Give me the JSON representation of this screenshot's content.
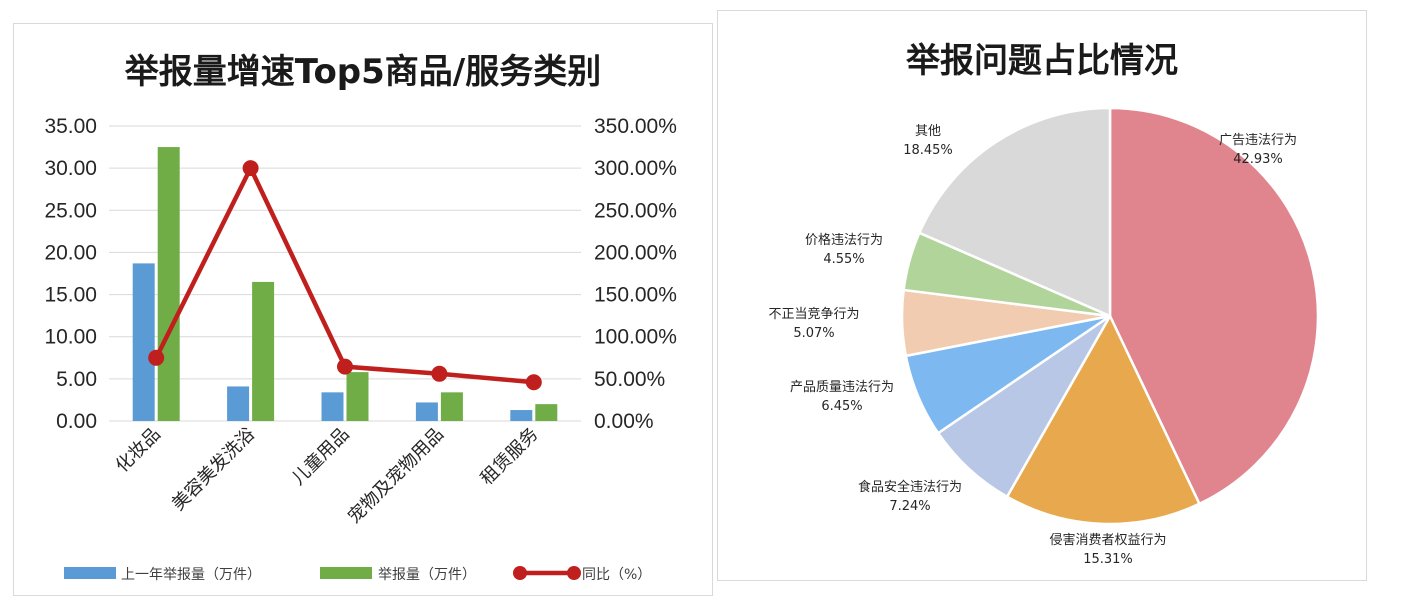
{
  "chart_data": [
    {
      "type": "bar",
      "title": "举报量增速Top5商品/服务类别",
      "categories": [
        "化妆品",
        "美容美发洗浴",
        "儿童用品",
        "宠物及宠物用品",
        "租赁服务"
      ],
      "series": [
        {
          "name": "上一年举报量（万件）",
          "type": "bar",
          "axis": "left",
          "color": "#5b9bd5",
          "values": [
            18.7,
            4.1,
            3.4,
            2.2,
            1.3
          ]
        },
        {
          "name": "举报量（万件）",
          "type": "bar",
          "axis": "left",
          "color": "#70ad47",
          "values": [
            32.5,
            16.5,
            5.8,
            3.4,
            2.0
          ]
        },
        {
          "name": "同比（%）",
          "type": "line",
          "axis": "right",
          "color": "#c0201d",
          "values": [
            75,
            300,
            64.5,
            56,
            46
          ]
        }
      ],
      "ylim": [
        0,
        35
      ],
      "y2lim": [
        0,
        350
      ],
      "yticks": [
        "0.00",
        "5.00",
        "10.00",
        "15.00",
        "20.00",
        "25.00",
        "30.00",
        "35.00"
      ],
      "y2ticks": [
        "0.00%",
        "50.00%",
        "100.00%",
        "150.00%",
        "200.00%",
        "250.00%",
        "300.00%",
        "350.00%"
      ],
      "grid": true,
      "legend": "bottom"
    },
    {
      "type": "pie",
      "title": "举报问题占比情况",
      "slices": [
        {
          "label": "广告违法行为",
          "value": 42.93,
          "display": "42.93%",
          "color": "#e0858e"
        },
        {
          "label": "侵害消费者权益行为",
          "value": 15.31,
          "display": "15.31%",
          "color": "#e8a94e"
        },
        {
          "label": "食品安全违法行为",
          "value": 7.24,
          "display": "7.24%",
          "color": "#b8c7e6"
        },
        {
          "label": "产品质量违法行为",
          "value": 6.45,
          "display": "6.45%",
          "color": "#7db9f0"
        },
        {
          "label": "不正当竞争行为",
          "value": 5.07,
          "display": "5.07%",
          "color": "#f2ccb0"
        },
        {
          "label": "价格违法行为",
          "value": 4.55,
          "display": "4.55%",
          "color": "#b0d49a"
        },
        {
          "label": "其他",
          "value": 18.45,
          "display": "18.45%",
          "color": "#d9d9d9"
        }
      ],
      "start": "12 o'clock",
      "direction": "clockwise"
    }
  ]
}
